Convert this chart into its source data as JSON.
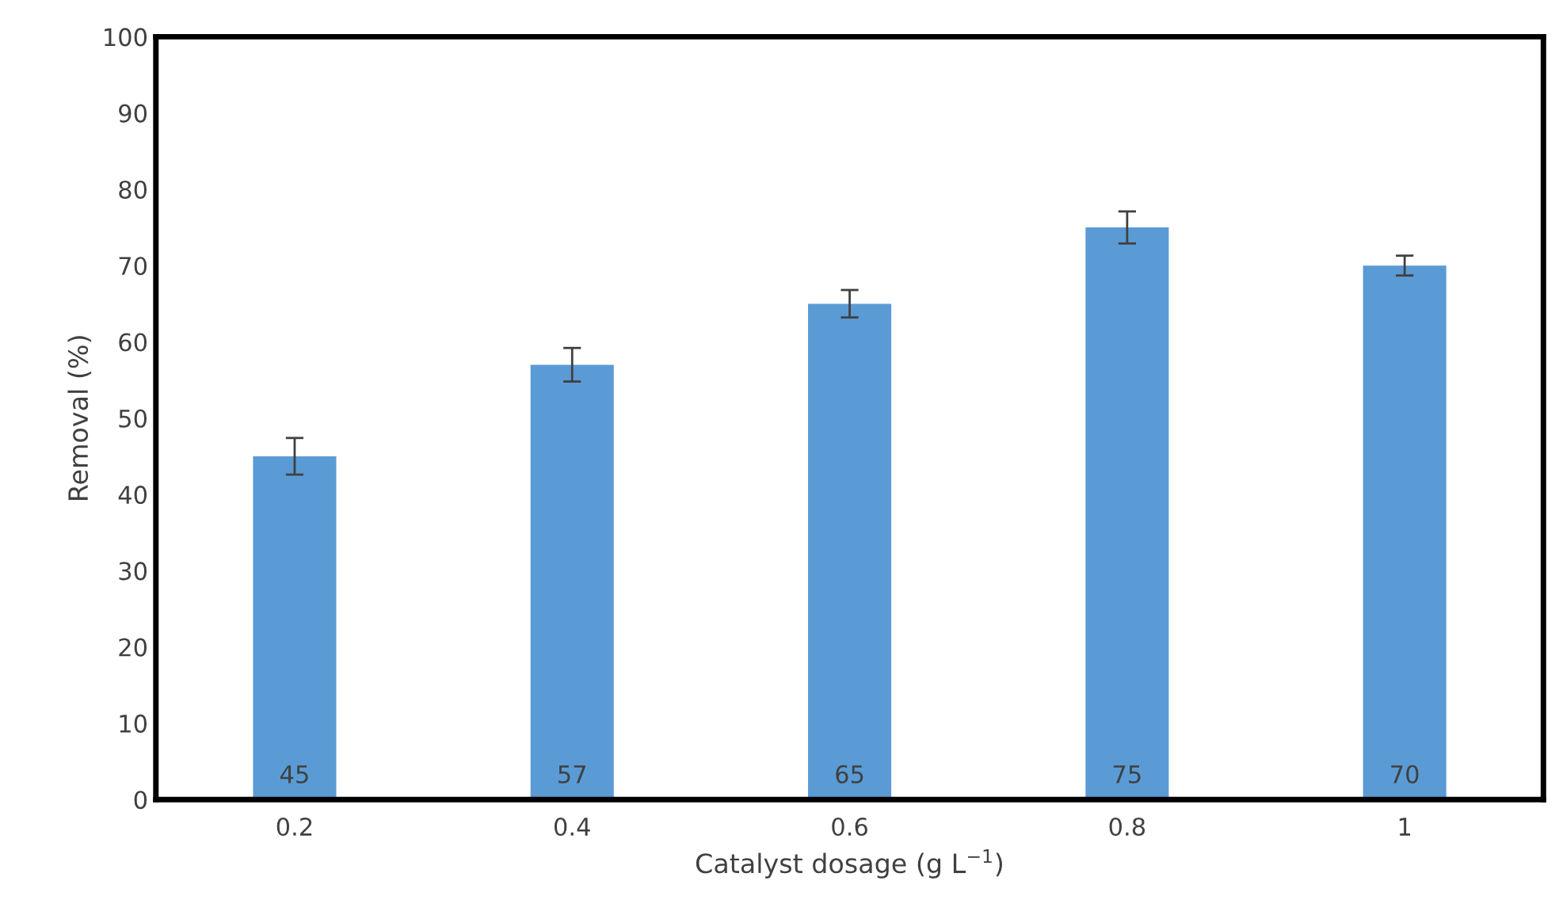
{
  "chart_data": {
    "type": "bar",
    "xlabel": "Catalyst dosage (g L$^{−1}$)",
    "ylabel": "Removal (%)",
    "categories": [
      "0.2",
      "0.4",
      "0.6",
      "0.8",
      "1"
    ],
    "values": [
      45,
      57,
      65,
      75,
      70
    ],
    "errors": [
      2.4,
      2.2,
      1.8,
      2.1,
      1.3
    ],
    "color": "#5b9bd5",
    "data_labels": true,
    "ylim": [
      0,
      100
    ],
    "yticks": [
      0,
      10,
      20,
      30,
      40,
      50,
      60,
      70,
      80,
      90,
      100
    ],
    "grid": false,
    "legend": false
  }
}
